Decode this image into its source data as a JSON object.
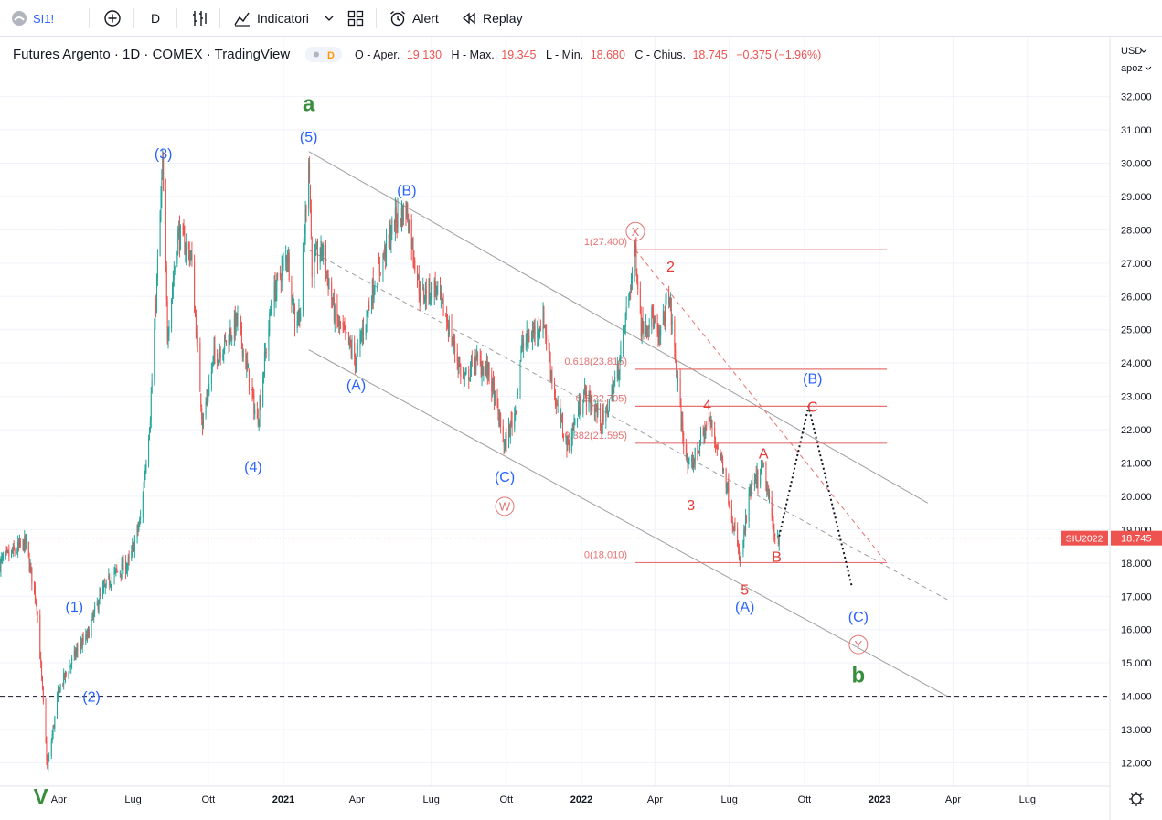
{
  "toolbar": {
    "symbol": "SI1!",
    "interval": "D",
    "indicators": "Indicatori",
    "alert": "Alert",
    "replay": "Replay"
  },
  "legend": {
    "title": "Futures Argento · 1D · COMEX · TradingView",
    "badge": "D",
    "o_label": "O - Aper.",
    "o_val": "19.130",
    "h_label": "H - Max.",
    "h_val": "19.345",
    "l_label": "L - Min.",
    "l_val": "18.680",
    "c_label": "C - Chius.",
    "c_val": "18.745",
    "change": "−0.375 (−1.96%)"
  },
  "price_scale": {
    "currency": "USD",
    "mode": "apoz"
  },
  "last_price": {
    "label": "SIU2022",
    "value": "18.745",
    "price": 18.745
  },
  "colors": {
    "up": "#26a69a",
    "down": "#ef5350",
    "blue": "#2962ff",
    "green": "#388e3c",
    "red": "#e53935",
    "channel": "#9e9e9e",
    "fib": "#e57373"
  },
  "chart_data": {
    "type": "candlestick",
    "title": "Futures Argento · 1D · COMEX · TradingView",
    "ylim": [
      11.3,
      33.8
    ],
    "xlim": [
      "2020-01-20",
      "2023-10-10"
    ],
    "y_ticks": [
      "12.000",
      "13.000",
      "14.000",
      "15.000",
      "16.000",
      "17.000",
      "18.000",
      "19.000",
      "20.000",
      "21.000",
      "22.000",
      "23.000",
      "24.000",
      "25.000",
      "26.000",
      "27.000",
      "28.000",
      "29.000",
      "30.000",
      "31.000",
      "32.000"
    ],
    "x_ticks": [
      {
        "label": "Apr",
        "date": "2020-04-01"
      },
      {
        "label": "Lug",
        "date": "2020-07-01"
      },
      {
        "label": "Ott",
        "date": "2020-10-01"
      },
      {
        "label": "2021",
        "date": "2021-01-01"
      },
      {
        "label": "Apr",
        "date": "2021-04-01"
      },
      {
        "label": "Lug",
        "date": "2021-07-01"
      },
      {
        "label": "Ott",
        "date": "2021-10-01"
      },
      {
        "label": "2022",
        "date": "2022-01-01"
      },
      {
        "label": "Apr",
        "date": "2022-04-01"
      },
      {
        "label": "Lug",
        "date": "2022-07-01"
      },
      {
        "label": "Ott",
        "date": "2022-10-01"
      },
      {
        "label": "2023",
        "date": "2023-01-01"
      },
      {
        "label": "Apr",
        "date": "2023-04-01"
      },
      {
        "label": "Lug",
        "date": "2023-07-01"
      }
    ],
    "price_path": [
      [
        "2020-01-20",
        18.0
      ],
      [
        "2020-02-20",
        18.6
      ],
      [
        "2020-03-05",
        16.8
      ],
      [
        "2020-03-18",
        11.8
      ],
      [
        "2020-04-01",
        14.2
      ],
      [
        "2020-04-22",
        15.3
      ],
      [
        "2020-05-06",
        15.8
      ],
      [
        "2020-05-20",
        16.9
      ],
      [
        "2020-06-05",
        17.6
      ],
      [
        "2020-06-26",
        18.0
      ],
      [
        "2020-07-10",
        19.3
      ],
      [
        "2020-07-22",
        22.5
      ],
      [
        "2020-08-06",
        29.9
      ],
      [
        "2020-08-12",
        24.9
      ],
      [
        "2020-08-25",
        27.9
      ],
      [
        "2020-09-10",
        27.2
      ],
      [
        "2020-09-24",
        22.2
      ],
      [
        "2020-10-08",
        24.2
      ],
      [
        "2020-10-22",
        24.6
      ],
      [
        "2020-11-06",
        25.3
      ],
      [
        "2020-11-30",
        22.2
      ],
      [
        "2020-12-18",
        25.9
      ],
      [
        "2021-01-06",
        27.3
      ],
      [
        "2021-01-15",
        25.3
      ],
      [
        "2021-01-22",
        25.6
      ],
      [
        "2021-02-01",
        30.3
      ],
      [
        "2021-02-05",
        26.9
      ],
      [
        "2021-02-18",
        27.4
      ],
      [
        "2021-03-05",
        25.4
      ],
      [
        "2021-03-31",
        24.1
      ],
      [
        "2021-04-20",
        26.2
      ],
      [
        "2021-05-18",
        28.3
      ],
      [
        "2021-06-01",
        28.6
      ],
      [
        "2021-06-18",
        26.0
      ],
      [
        "2021-07-06",
        26.3
      ],
      [
        "2021-07-20",
        25.3
      ],
      [
        "2021-08-10",
        23.4
      ],
      [
        "2021-08-23",
        24.1
      ],
      [
        "2021-09-10",
        23.7
      ],
      [
        "2021-09-29",
        21.5
      ],
      [
        "2021-10-12",
        22.6
      ],
      [
        "2021-10-20",
        24.5
      ],
      [
        "2021-11-16",
        25.3
      ],
      [
        "2021-12-01",
        22.7
      ],
      [
        "2021-12-15",
        21.5
      ],
      [
        "2022-01-04",
        23.1
      ],
      [
        "2022-01-28",
        22.2
      ],
      [
        "2022-02-15",
        23.8
      ],
      [
        "2022-03-08",
        27.4
      ],
      [
        "2022-03-15",
        25.1
      ],
      [
        "2022-03-29",
        25.4
      ],
      [
        "2022-04-05",
        24.6
      ],
      [
        "2022-04-18",
        26.1
      ],
      [
        "2022-05-02",
        22.5
      ],
      [
        "2022-05-12",
        20.7
      ],
      [
        "2022-06-06",
        22.3
      ],
      [
        "2022-06-24",
        20.9
      ],
      [
        "2022-07-14",
        18.0
      ],
      [
        "2022-07-27",
        20.2
      ],
      [
        "2022-08-12",
        20.8
      ],
      [
        "2022-08-25",
        18.9
      ],
      [
        "2022-08-31",
        18.745
      ]
    ],
    "channel": [
      {
        "from": [
          "2021-02-01",
          30.35
        ],
        "to": [
          "2023-03-01",
          19.8
        ],
        "style": "solid"
      },
      {
        "from": [
          "2021-02-01",
          24.4
        ],
        "to": [
          "2023-03-25",
          14.0
        ],
        "style": "solid"
      },
      {
        "from": [
          "2021-02-01",
          27.4
        ],
        "to": [
          "2023-03-25",
          16.9
        ],
        "style": "dashed"
      }
    ],
    "fibonacci": {
      "x_start": "2022-03-08",
      "x_end": "2023-01-10",
      "levels": [
        {
          "label": "1(27.400)",
          "price": 27.4
        },
        {
          "label": "0.618(23.815)",
          "price": 23.815
        },
        {
          "label": "0.5(22.705)",
          "price": 22.705
        },
        {
          "label": "0.382(21.595)",
          "price": 21.595
        },
        {
          "label": "0(18.010)",
          "price": 18.01
        }
      ]
    },
    "projection": [
      [
        "2022-08-31",
        18.8
      ],
      [
        "2022-10-06",
        22.7
      ],
      [
        "2022-11-28",
        17.3
      ]
    ],
    "pink_dashed": {
      "from": [
        "2022-03-08",
        27.4
      ],
      "to": [
        "2023-01-10",
        18.0
      ]
    },
    "support": 14.0,
    "wave_labels": [
      {
        "text": "V",
        "date": "2020-03-10",
        "price": 11.0,
        "color": "green",
        "size": 24,
        "bold": true
      },
      {
        "text": "(1)",
        "date": "2020-04-20",
        "price": 16.7,
        "color": "blue",
        "size": 16
      },
      {
        "text": "-(2)",
        "date": "2020-05-08",
        "price": 14.0,
        "color": "blue",
        "size": 16
      },
      {
        "text": "(3)",
        "date": "2020-08-07",
        "price": 30.3,
        "color": "blue",
        "size": 16
      },
      {
        "text": "(4)",
        "date": "2020-11-25",
        "price": 20.9,
        "color": "blue",
        "size": 16
      },
      {
        "text": "(5)",
        "date": "2021-02-01",
        "price": 30.8,
        "color": "blue",
        "size": 16
      },
      {
        "text": "a",
        "date": "2021-02-01",
        "price": 31.8,
        "color": "green",
        "size": 24,
        "bold": true
      },
      {
        "text": "(A)",
        "date": "2021-03-31",
        "price": 23.35,
        "color": "blue",
        "size": 16
      },
      {
        "text": "(B)",
        "date": "2021-06-01",
        "price": 29.2,
        "color": "blue",
        "size": 16
      },
      {
        "text": "(C)",
        "date": "2021-09-29",
        "price": 20.6,
        "color": "blue",
        "size": 16
      },
      {
        "text": "W",
        "date": "2021-09-29",
        "price": 19.7,
        "color": "pink",
        "size": 13,
        "circle": true
      },
      {
        "text": "X",
        "date": "2022-03-08",
        "price": 27.95,
        "color": "pink",
        "size": 13,
        "circle": true
      },
      {
        "text": "2",
        "date": "2022-04-20",
        "price": 26.9,
        "color": "red",
        "size": 16
      },
      {
        "text": "3",
        "date": "2022-05-15",
        "price": 19.75,
        "color": "red",
        "size": 16
      },
      {
        "text": "4",
        "date": "2022-06-04",
        "price": 22.75,
        "color": "red",
        "size": 16
      },
      {
        "text": "5",
        "date": "2022-07-20",
        "price": 17.2,
        "color": "red",
        "size": 16
      },
      {
        "text": "(A)",
        "date": "2022-07-20",
        "price": 16.7,
        "color": "blue",
        "size": 16
      },
      {
        "text": "A",
        "date": "2022-08-12",
        "price": 21.3,
        "color": "red",
        "size": 16
      },
      {
        "text": "B",
        "date": "2022-08-28",
        "price": 18.2,
        "color": "red",
        "size": 16
      },
      {
        "text": "(B)",
        "date": "2022-10-11",
        "price": 23.55,
        "color": "blue",
        "size": 16
      },
      {
        "text": "C",
        "date": "2022-10-11",
        "price": 22.7,
        "color": "red",
        "size": 16
      },
      {
        "text": "(C)",
        "date": "2022-12-06",
        "price": 16.4,
        "color": "blue",
        "size": 16
      },
      {
        "text": "Y",
        "date": "2022-12-06",
        "price": 15.55,
        "color": "pink",
        "size": 13,
        "circle": true
      },
      {
        "text": "b",
        "date": "2022-12-06",
        "price": 14.65,
        "color": "green",
        "size": 24,
        "bold": true
      }
    ]
  }
}
